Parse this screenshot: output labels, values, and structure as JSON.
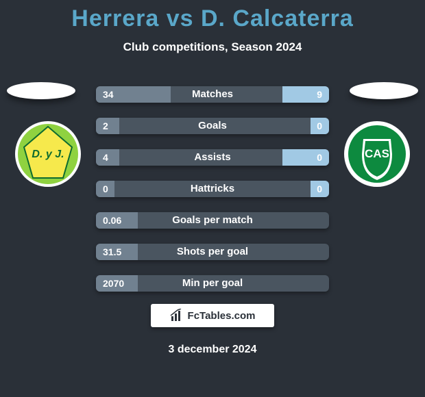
{
  "title_color": "#5aa7c9",
  "title": "Herrera vs D. Calcaterra",
  "subtitle": "Club competitions, Season 2024",
  "players": {
    "left": {
      "club_name": "D. y J.",
      "club_primary": "#8fd240",
      "club_secondary": "#f6e94c"
    },
    "right": {
      "club_name": "CAS",
      "club_primary": "#0d8a3f",
      "club_secondary": "#ffffff"
    }
  },
  "bar_track_color": "#4a5560",
  "left_fill_color": "#718190",
  "right_fill_color": "#a1c9e4",
  "text_color": "#ffffff",
  "stats": [
    {
      "label": "Matches",
      "left_val": "34",
      "right_val": "9",
      "left_pct": 32,
      "right_pct": 20
    },
    {
      "label": "Goals",
      "left_val": "2",
      "right_val": "0",
      "left_pct": 10,
      "right_pct": 8
    },
    {
      "label": "Assists",
      "left_val": "4",
      "right_val": "0",
      "left_pct": 10,
      "right_pct": 20
    },
    {
      "label": "Hattricks",
      "left_val": "0",
      "right_val": "0",
      "left_pct": 8,
      "right_pct": 8
    },
    {
      "label": "Goals per match",
      "left_val": "0.06",
      "right_val": "",
      "left_pct": 18,
      "right_pct": 0
    },
    {
      "label": "Shots per goal",
      "left_val": "31.5",
      "right_val": "",
      "left_pct": 18,
      "right_pct": 0
    },
    {
      "label": "Min per goal",
      "left_val": "2070",
      "right_val": "",
      "left_pct": 18,
      "right_pct": 0
    }
  ],
  "footer": {
    "site": "FcTables.com",
    "date": "3 december 2024"
  }
}
